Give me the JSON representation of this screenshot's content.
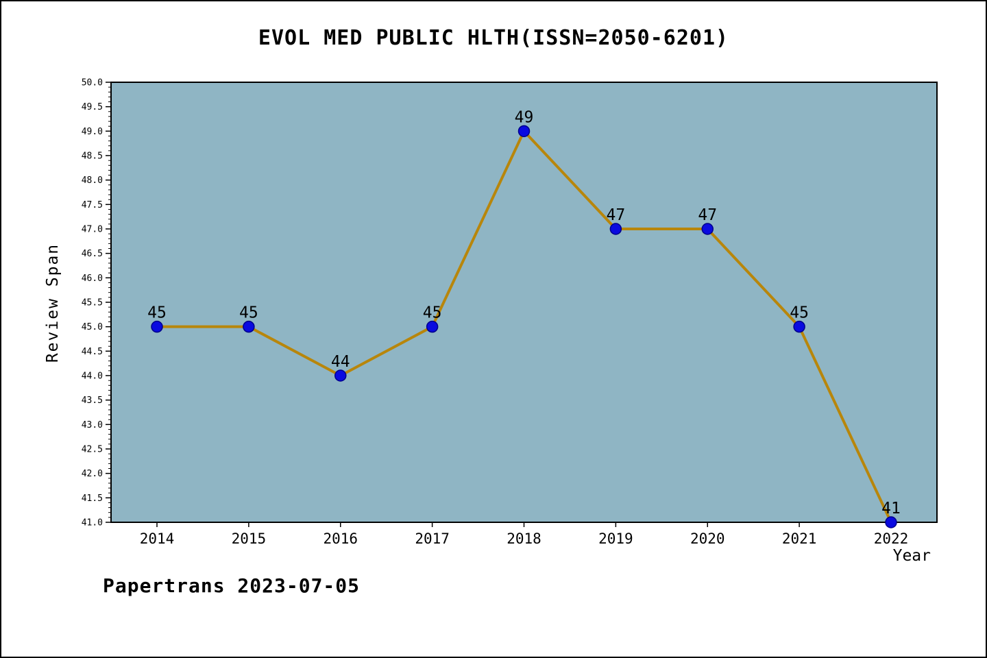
{
  "title": "EVOL MED PUBLIC HLTH(ISSN=2050-6201)",
  "footer": "Papertrans 2023-07-05",
  "chart_data": {
    "type": "line",
    "x": [
      2014,
      2015,
      2016,
      2017,
      2018,
      2019,
      2020,
      2021,
      2022
    ],
    "series": [
      {
        "name": "Review Span",
        "values": [
          45,
          45,
          44,
          45,
          49,
          47,
          47,
          45,
          41
        ]
      }
    ],
    "annotations": [
      "45",
      "45",
      "44",
      "45",
      "49",
      "47",
      "47",
      "45",
      "41"
    ],
    "title": "EVOL MED PUBLIC HLTH(ISSN=2050-6201)",
    "xlabel": "Year",
    "ylabel": "Review Span",
    "ylim": [
      41.0,
      50.0
    ],
    "yticks": [
      41.0,
      41.5,
      42.0,
      42.5,
      43.0,
      43.5,
      44.0,
      44.5,
      45.0,
      45.5,
      46.0,
      46.5,
      47.0,
      47.5,
      48.0,
      48.5,
      49.0,
      49.5,
      50.0
    ],
    "minor_tick_step": 0.1,
    "grid": false,
    "legend": "none",
    "colors": {
      "plot_bg": "#8FB5C4",
      "line": "#B8860B",
      "marker_fill": "#0A0AE0",
      "marker_edge": "#00008B",
      "text": "#000000",
      "axis": "#000000"
    }
  }
}
